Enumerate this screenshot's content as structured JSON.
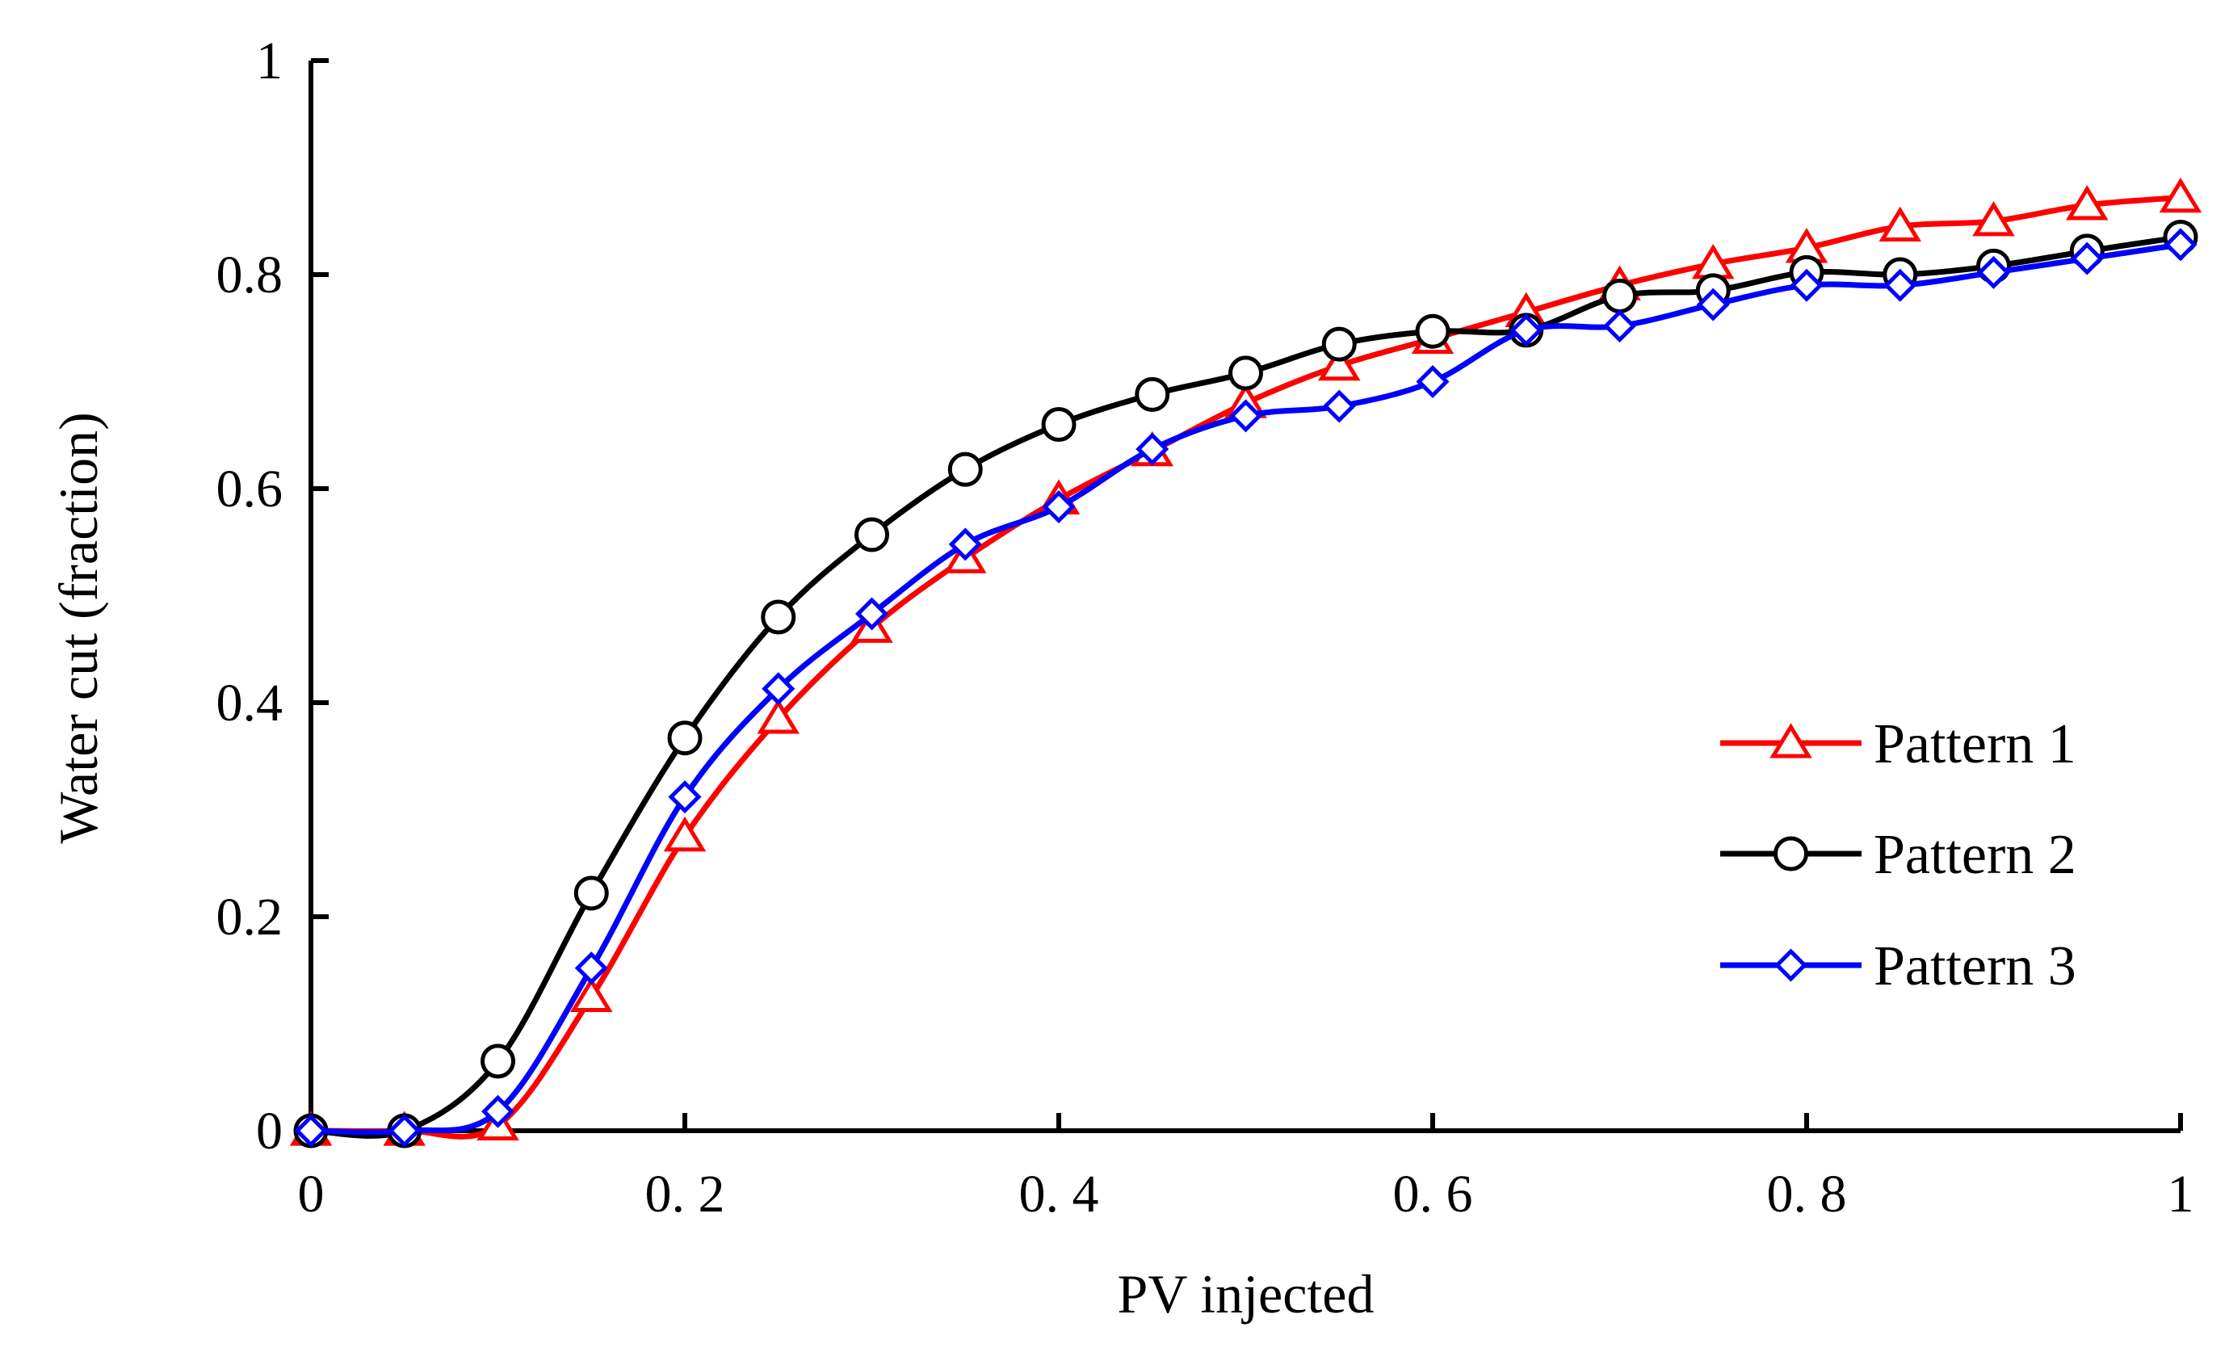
{
  "chart_data": {
    "type": "line",
    "title": "",
    "xlabel": "PV injected",
    "ylabel": "Water cut (fraction)",
    "xlim": [
      0,
      1
    ],
    "ylim": [
      0,
      1
    ],
    "x_ticks": [
      0,
      0.2,
      0.4,
      0.6,
      0.8,
      1
    ],
    "x_tick_labels": [
      "0",
      "0. 2",
      "0. 4",
      "0. 6",
      "0. 8",
      "1"
    ],
    "y_ticks": [
      0,
      0.2,
      0.4,
      0.6,
      0.8,
      1
    ],
    "y_tick_labels": [
      "0",
      "0.2",
      "0.4",
      "0.6",
      "0.8",
      "1"
    ],
    "grid": false,
    "legend_position": "right",
    "x": [
      0,
      0.05,
      0.1,
      0.15,
      0.2,
      0.25,
      0.3,
      0.35,
      0.4,
      0.45,
      0.5,
      0.55,
      0.6,
      0.65,
      0.7,
      0.75,
      0.8,
      0.85,
      0.9,
      0.95,
      1.0
    ],
    "series": [
      {
        "name": "Pattern 1",
        "color": "#ff0000",
        "marker": "triangle",
        "values": [
          0,
          0,
          0.005,
          0.125,
          0.275,
          0.385,
          0.47,
          0.535,
          0.59,
          0.635,
          0.68,
          0.715,
          0.74,
          0.765,
          0.79,
          0.81,
          0.825,
          0.845,
          0.85,
          0.865,
          0.872
        ]
      },
      {
        "name": "Pattern 2",
        "color": "#000000",
        "marker": "circle",
        "values": [
          0,
          0,
          0.065,
          0.222,
          0.367,
          0.48,
          0.557,
          0.618,
          0.66,
          0.688,
          0.708,
          0.735,
          0.747,
          0.748,
          0.78,
          0.785,
          0.802,
          0.8,
          0.808,
          0.822,
          0.835
        ]
      },
      {
        "name": "Pattern 3",
        "color": "#0000ff",
        "marker": "diamond",
        "values": [
          0,
          0,
          0.018,
          0.152,
          0.312,
          0.413,
          0.483,
          0.548,
          0.583,
          0.637,
          0.668,
          0.677,
          0.7,
          0.748,
          0.752,
          0.772,
          0.79,
          0.79,
          0.802,
          0.815,
          0.828
        ]
      }
    ]
  }
}
